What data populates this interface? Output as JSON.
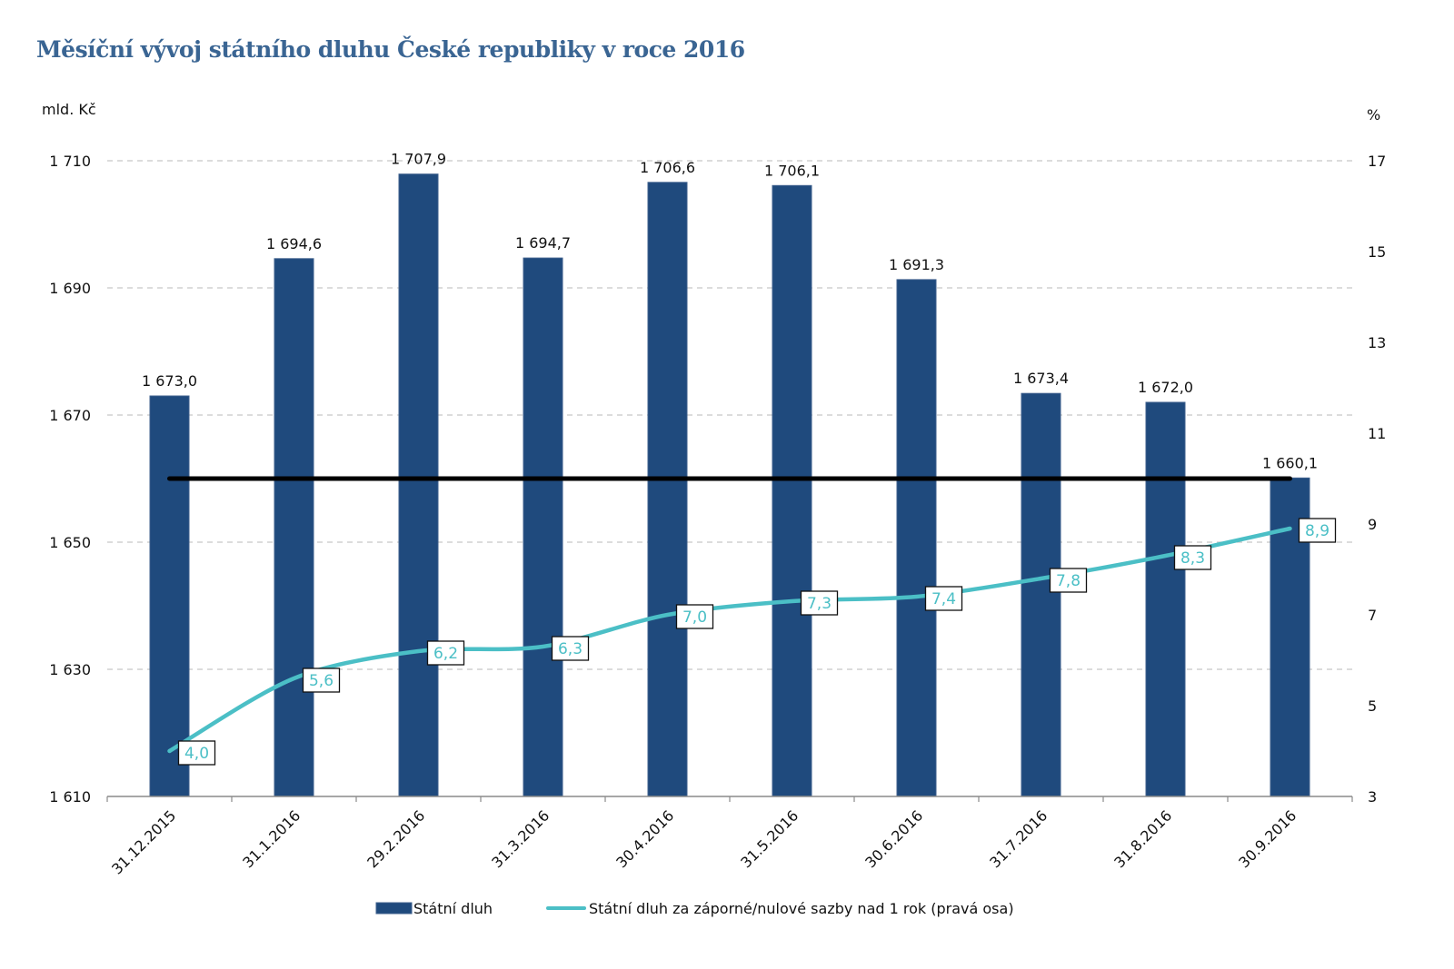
{
  "chart_data": {
    "type": "bar",
    "title": "Měsíční vývoj státního dluhu České republiky v roce 2016",
    "left_axis_label": "mld. Kč",
    "right_axis_label": "%",
    "categories": [
      "31.12.2015",
      "31.1.2016",
      "29.2.2016",
      "31.3.2016",
      "30.4.2016",
      "31.5.2016",
      "30.6.2016",
      "31.7.2016",
      "31.8.2016",
      "30.9.2016"
    ],
    "ylim_left": [
      1610,
      1710
    ],
    "left_ticks": [
      1610,
      1630,
      1650,
      1670,
      1690,
      1710
    ],
    "left_tick_labels": [
      "1 610",
      "1 630",
      "1 650",
      "1 670",
      "1 690",
      "1 710"
    ],
    "ylim_right": [
      3,
      17
    ],
    "right_ticks": [
      3,
      5,
      7,
      9,
      11,
      13,
      15,
      17
    ],
    "right_tick_labels": [
      "3",
      "5",
      "7",
      "9",
      "11",
      "13",
      "15",
      "17"
    ],
    "grid": "horizontal dashed",
    "reference_line": {
      "axis": "left",
      "value": 1660,
      "color": "#000000"
    },
    "series": [
      {
        "name": "Státní dluh",
        "type": "bar",
        "axis": "left",
        "color": "#1f4a7d",
        "values": [
          1673.0,
          1694.6,
          1707.9,
          1694.7,
          1706.6,
          1706.1,
          1691.3,
          1673.4,
          1672.0,
          1660.1
        ],
        "labels": [
          "1 673,0",
          "1 694,6",
          "1 707,9",
          "1 694,7",
          "1 706,6",
          "1 706,1",
          "1 691,3",
          "1 673,4",
          "1 672,0",
          "1 660,1"
        ]
      },
      {
        "name": "Státní dluh za záporné/nulové sazby nad 1 rok (pravá osa)",
        "type": "line",
        "axis": "right",
        "color": "#4bbfc6",
        "values": [
          4.0,
          5.6,
          6.2,
          6.3,
          7.0,
          7.3,
          7.4,
          7.8,
          8.3,
          8.9
        ],
        "labels": [
          "4,0",
          "5,6",
          "6,2",
          "6,3",
          "7,0",
          "7,3",
          "7,4",
          "7,8",
          "8,3",
          "8,9"
        ]
      }
    ],
    "legend_position": "bottom-center"
  }
}
